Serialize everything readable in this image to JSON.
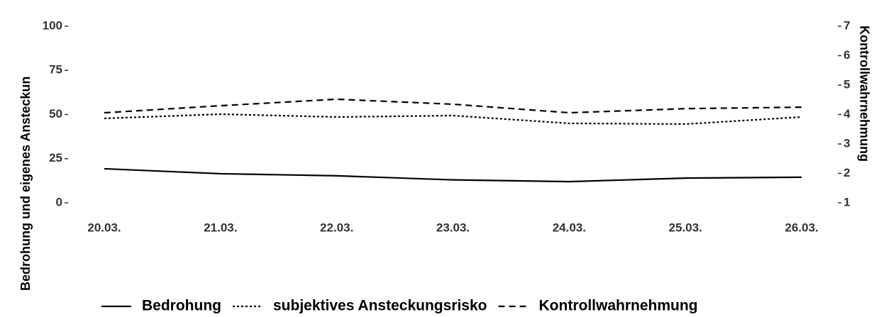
{
  "chart_data": {
    "type": "line",
    "x": [
      "20.03.",
      "21.03.",
      "22.03.",
      "23.03.",
      "24.03.",
      "25.03.",
      "26.03."
    ],
    "y_label": "Bedrohung und eigenes Ansteckun",
    "y2_label": "Kontrollwahrnehmung",
    "ylim": [
      0,
      100
    ],
    "yticks": [
      0,
      25,
      50,
      75,
      100
    ],
    "y2lim": [
      1,
      7
    ],
    "y2ticks": [
      1,
      2,
      3,
      4,
      5,
      6,
      7
    ],
    "grid": false,
    "legend": "bottom",
    "series": [
      {
        "name": "Bedrohung",
        "color": "#000000",
        "dash": "solid",
        "values": [
          19.3,
          16.5,
          15.3,
          13,
          12,
          14,
          14.5
        ]
      },
      {
        "name": "subjektives Ansteckungsrisko",
        "color": "#000000",
        "dash": "dotted",
        "values": [
          47.8,
          50.2,
          48.6,
          49.4,
          45,
          44.6,
          48.6
        ]
      },
      {
        "name": "Kontrollwahrnehmung",
        "color": "#000000",
        "dash": "dashed",
        "axis": "y2",
        "values": [
          4.06,
          4.3,
          4.52,
          4.35,
          4.06,
          4.2,
          4.25
        ]
      }
    ]
  }
}
